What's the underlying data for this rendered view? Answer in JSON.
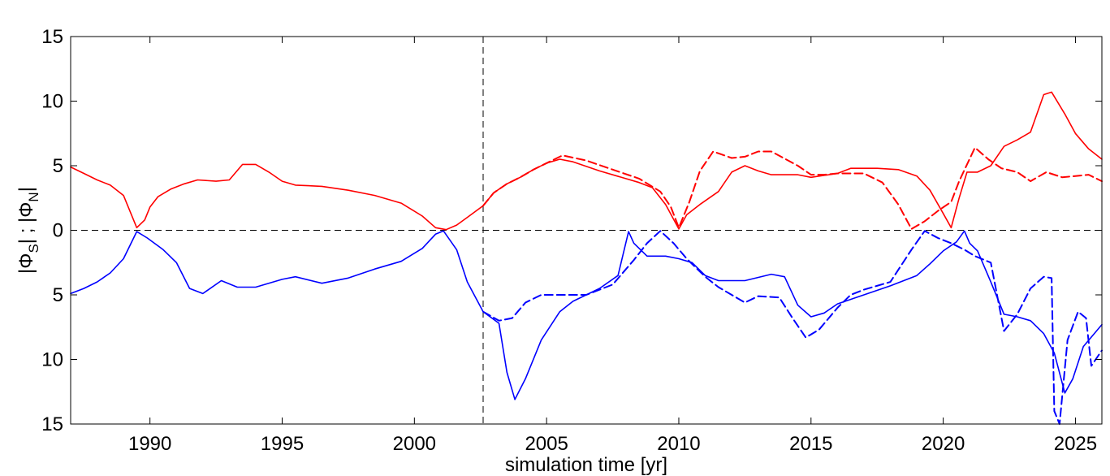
{
  "chart_data": {
    "type": "line",
    "xlabel": "simulation time [yr]",
    "ylabel": {
      "phi_s": "|Φ",
      "sub_s": "S",
      "mid": "| ; |Φ",
      "sub_n": "N",
      "end": "|"
    },
    "xlim": [
      1987,
      2026
    ],
    "ylim": [
      -15,
      15
    ],
    "x_ticks": [
      1990,
      1995,
      2000,
      2005,
      2010,
      2015,
      2020,
      2025
    ],
    "x_tick_labels": [
      "1990",
      "1995",
      "2000",
      "2005",
      "2010",
      "2015",
      "2020",
      "2025"
    ],
    "y_ticks": [
      15,
      10,
      5,
      0,
      -5,
      -10,
      -15
    ],
    "y_tick_labels": [
      "15",
      "10",
      "5",
      "0",
      "5",
      "10",
      "15"
    ],
    "vertical_marker": 2002.6,
    "horizontal_marker": 0,
    "grid": false,
    "colors": {
      "north": "#ff0000",
      "south": "#0000ff",
      "reference": "#000000"
    },
    "series": [
      {
        "hemisphere": "north",
        "style": "solid",
        "points": [
          [
            1987,
            4.9
          ],
          [
            1987.5,
            4.4
          ],
          [
            1988,
            3.9
          ],
          [
            1988.5,
            3.5
          ],
          [
            1989,
            2.7
          ],
          [
            1989.5,
            0.2
          ],
          [
            1989.8,
            0.8
          ],
          [
            1990,
            1.8
          ],
          [
            1990.3,
            2.6
          ],
          [
            1990.8,
            3.2
          ],
          [
            1991.3,
            3.6
          ],
          [
            1991.8,
            3.9
          ],
          [
            1992.5,
            3.8
          ],
          [
            1993,
            3.9
          ],
          [
            1993.5,
            5.1
          ],
          [
            1994,
            5.1
          ],
          [
            1994.5,
            4.5
          ],
          [
            1995,
            3.8
          ],
          [
            1995.5,
            3.5
          ],
          [
            1996.5,
            3.4
          ],
          [
            1997.5,
            3.1
          ],
          [
            1998.5,
            2.7
          ],
          [
            1999.5,
            2.1
          ],
          [
            2000.3,
            1.1
          ],
          [
            2000.8,
            0.2
          ],
          [
            2001.2,
            0.05
          ],
          [
            2001.6,
            0.4
          ],
          [
            2002,
            1.0
          ],
          [
            2002.6,
            1.9
          ],
          [
            2003,
            2.9
          ],
          [
            2003.5,
            3.6
          ],
          [
            2004,
            4.1
          ],
          [
            2004.5,
            4.7
          ],
          [
            2005,
            5.2
          ],
          [
            2005.5,
            5.5
          ],
          [
            2006,
            5.3
          ],
          [
            2007,
            4.6
          ],
          [
            2008,
            4.0
          ],
          [
            2008.5,
            3.7
          ],
          [
            2009,
            3.3
          ],
          [
            2009.5,
            2.0
          ],
          [
            2010,
            0.1
          ],
          [
            2010.3,
            1.2
          ],
          [
            2010.8,
            2.0
          ],
          [
            2011.5,
            3.0
          ],
          [
            2012,
            4.5
          ],
          [
            2012.5,
            5.0
          ],
          [
            2013,
            4.6
          ],
          [
            2013.5,
            4.3
          ],
          [
            2014.5,
            4.3
          ],
          [
            2015,
            4.1
          ],
          [
            2016,
            4.4
          ],
          [
            2016.5,
            4.8
          ],
          [
            2017.5,
            4.8
          ],
          [
            2018.3,
            4.7
          ],
          [
            2019,
            4.2
          ],
          [
            2019.5,
            3.1
          ],
          [
            2020,
            1.3
          ],
          [
            2020.3,
            0.2
          ],
          [
            2020.6,
            2.5
          ],
          [
            2020.9,
            4.5
          ],
          [
            2021.3,
            4.5
          ],
          [
            2021.8,
            5.0
          ],
          [
            2022.3,
            6.5
          ],
          [
            2022.8,
            7.0
          ],
          [
            2023.3,
            7.6
          ],
          [
            2023.8,
            10.5
          ],
          [
            2024.1,
            10.7
          ],
          [
            2024.6,
            9.0
          ],
          [
            2025,
            7.5
          ],
          [
            2025.5,
            6.3
          ],
          [
            2026,
            5.5
          ]
        ]
      },
      {
        "hemisphere": "north",
        "style": "dashed",
        "points": [
          [
            2002.6,
            1.9
          ],
          [
            2003,
            2.9
          ],
          [
            2003.5,
            3.6
          ],
          [
            2004,
            4.1
          ],
          [
            2004.5,
            4.7
          ],
          [
            2005,
            5.2
          ],
          [
            2005.6,
            5.8
          ],
          [
            2006.5,
            5.4
          ],
          [
            2007.5,
            4.7
          ],
          [
            2008.5,
            4.0
          ],
          [
            2009.3,
            3.0
          ],
          [
            2009.7,
            1.8
          ],
          [
            2010,
            0.2
          ],
          [
            2010.4,
            2.2
          ],
          [
            2010.8,
            4.6
          ],
          [
            2011.3,
            6.1
          ],
          [
            2012,
            5.6
          ],
          [
            2012.5,
            5.7
          ],
          [
            2013,
            6.1
          ],
          [
            2013.5,
            6.1
          ],
          [
            2014.5,
            5.0
          ],
          [
            2015,
            4.3
          ],
          [
            2015.5,
            4.3
          ],
          [
            2016,
            4.4
          ],
          [
            2017,
            4.4
          ],
          [
            2017.7,
            3.7
          ],
          [
            2018.3,
            2.0
          ],
          [
            2018.8,
            0.1
          ],
          [
            2019.3,
            0.7
          ],
          [
            2019.8,
            1.5
          ],
          [
            2020.3,
            2.2
          ],
          [
            2020.6,
            3.8
          ],
          [
            2021.2,
            6.4
          ],
          [
            2021.7,
            5.5
          ],
          [
            2022.2,
            4.8
          ],
          [
            2022.8,
            4.5
          ],
          [
            2023.3,
            3.8
          ],
          [
            2023.9,
            4.5
          ],
          [
            2024.5,
            4.1
          ],
          [
            2025,
            4.2
          ],
          [
            2025.5,
            4.3
          ],
          [
            2026,
            3.8
          ]
        ]
      },
      {
        "hemisphere": "south",
        "style": "solid",
        "points": [
          [
            1987,
            -4.9
          ],
          [
            1987.5,
            -4.5
          ],
          [
            1988,
            -4.0
          ],
          [
            1988.5,
            -3.3
          ],
          [
            1989,
            -2.2
          ],
          [
            1989.5,
            -0.1
          ],
          [
            1989.9,
            -0.6
          ],
          [
            1990.5,
            -1.5
          ],
          [
            1991,
            -2.5
          ],
          [
            1991.5,
            -4.5
          ],
          [
            1992,
            -4.9
          ],
          [
            1992.7,
            -3.9
          ],
          [
            1993.3,
            -4.4
          ],
          [
            1994,
            -4.4
          ],
          [
            1995,
            -3.8
          ],
          [
            1995.5,
            -3.6
          ],
          [
            1996.5,
            -4.1
          ],
          [
            1997.5,
            -3.7
          ],
          [
            1998.5,
            -3.0
          ],
          [
            1999.5,
            -2.4
          ],
          [
            2000.3,
            -1.4
          ],
          [
            2000.8,
            -0.3
          ],
          [
            2001.1,
            -0.05
          ],
          [
            2001.6,
            -1.5
          ],
          [
            2002,
            -4.0
          ],
          [
            2002.6,
            -6.3
          ],
          [
            2003.2,
            -7.2
          ],
          [
            2003.5,
            -11.0
          ],
          [
            2003.8,
            -13.1
          ],
          [
            2004.2,
            -11.5
          ],
          [
            2004.8,
            -8.5
          ],
          [
            2005.5,
            -6.3
          ],
          [
            2006,
            -5.5
          ],
          [
            2006.5,
            -5.0
          ],
          [
            2007,
            -4.5
          ],
          [
            2007.7,
            -3.5
          ],
          [
            2008.1,
            -0.1
          ],
          [
            2008.3,
            -1.0
          ],
          [
            2008.8,
            -2.0
          ],
          [
            2009.5,
            -2.0
          ],
          [
            2010,
            -2.2
          ],
          [
            2010.5,
            -2.5
          ],
          [
            2011,
            -3.5
          ],
          [
            2011.5,
            -3.9
          ],
          [
            2012.5,
            -3.9
          ],
          [
            2013.5,
            -3.4
          ],
          [
            2014,
            -3.6
          ],
          [
            2014.5,
            -5.8
          ],
          [
            2015,
            -6.7
          ],
          [
            2015.5,
            -6.4
          ],
          [
            2016,
            -5.7
          ],
          [
            2017,
            -5.0
          ],
          [
            2018,
            -4.3
          ],
          [
            2019,
            -3.5
          ],
          [
            2019.5,
            -2.6
          ],
          [
            2020,
            -1.6
          ],
          [
            2020.5,
            -0.9
          ],
          [
            2020.8,
            -0.05
          ],
          [
            2021,
            -1.0
          ],
          [
            2021.3,
            -1.6
          ],
          [
            2021.8,
            -4.0
          ],
          [
            2022.3,
            -6.5
          ],
          [
            2022.8,
            -6.7
          ],
          [
            2023.3,
            -7.0
          ],
          [
            2023.8,
            -8.0
          ],
          [
            2024.2,
            -9.5
          ],
          [
            2024.6,
            -12.6
          ],
          [
            2024.9,
            -11.5
          ],
          [
            2025.3,
            -9.0
          ],
          [
            2026,
            -7.3
          ]
        ]
      },
      {
        "hemisphere": "south",
        "style": "dashed",
        "points": [
          [
            2002.6,
            -6.3
          ],
          [
            2003.2,
            -7.0
          ],
          [
            2003.7,
            -6.8
          ],
          [
            2004.2,
            -5.6
          ],
          [
            2004.8,
            -5.0
          ],
          [
            2005.5,
            -5.0
          ],
          [
            2006.5,
            -5.0
          ],
          [
            2007.5,
            -4.2
          ],
          [
            2008.3,
            -2.3
          ],
          [
            2008.8,
            -1.0
          ],
          [
            2009.3,
            -0.05
          ],
          [
            2009.8,
            -1.0
          ],
          [
            2010.3,
            -2.2
          ],
          [
            2011,
            -3.6
          ],
          [
            2011.5,
            -4.4
          ],
          [
            2012,
            -5.0
          ],
          [
            2012.5,
            -5.6
          ],
          [
            2013,
            -5.1
          ],
          [
            2013.8,
            -5.2
          ],
          [
            2014.3,
            -6.8
          ],
          [
            2014.8,
            -8.3
          ],
          [
            2015.3,
            -7.7
          ],
          [
            2016,
            -6.0
          ],
          [
            2016.5,
            -5.0
          ],
          [
            2017,
            -4.6
          ],
          [
            2018,
            -4.0
          ],
          [
            2018.8,
            -1.5
          ],
          [
            2019.3,
            -0.05
          ],
          [
            2019.8,
            -0.6
          ],
          [
            2020.3,
            -1.0
          ],
          [
            2020.8,
            -1.5
          ],
          [
            2021.2,
            -2.0
          ],
          [
            2021.8,
            -2.5
          ],
          [
            2022.3,
            -7.8
          ],
          [
            2022.8,
            -6.5
          ],
          [
            2023.3,
            -4.5
          ],
          [
            2023.8,
            -3.6
          ],
          [
            2024.1,
            -3.7
          ],
          [
            2024.2,
            -14.0
          ],
          [
            2024.4,
            -15
          ],
          [
            2024.7,
            -8.5
          ],
          [
            2025.1,
            -6.3
          ],
          [
            2025.4,
            -6.8
          ],
          [
            2025.6,
            -10.5
          ],
          [
            2026,
            -9.3
          ]
        ]
      }
    ]
  }
}
